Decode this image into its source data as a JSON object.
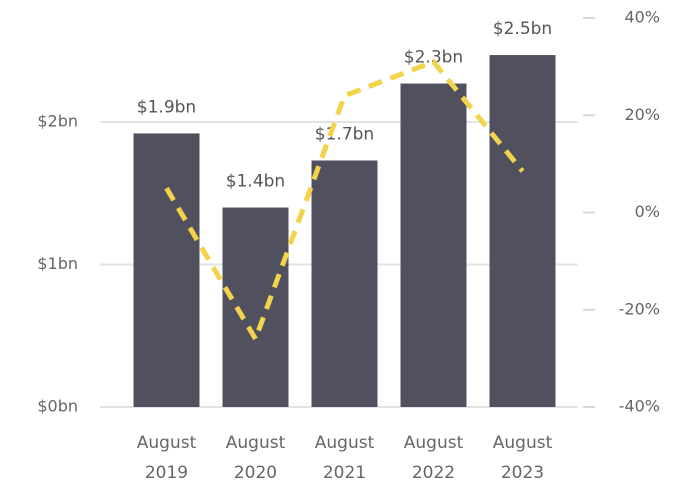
{
  "chart_data": {
    "type": "bar",
    "categories": [
      "August 2019",
      "August 2020",
      "August 2021",
      "August 2022",
      "August 2023"
    ],
    "series": [
      {
        "type": "bar",
        "color": "#50505f",
        "values": [
          1.92,
          1.4,
          1.73,
          2.27,
          2.47
        ],
        "value_labels": [
          "$1.9bn",
          "$1.4bn",
          "$1.7bn",
          "$2.3bn",
          "$2.5bn"
        ]
      },
      {
        "type": "line",
        "color": "#f2d34a",
        "axis": "y2",
        "values": [
          5,
          -26,
          24,
          31,
          8.5
        ]
      }
    ],
    "ylim": [
      0,
      2.73
    ],
    "yticks": [
      {
        "value": 0,
        "label": "$0bn"
      },
      {
        "value": 1,
        "label": "$1bn"
      },
      {
        "value": 2,
        "label": "$2bn"
      }
    ],
    "y2lim": [
      -40,
      40
    ],
    "y2ticks": [
      {
        "value": -40,
        "label": "-40%"
      },
      {
        "value": -20,
        "label": "-20%"
      },
      {
        "value": 0,
        "label": "0%"
      },
      {
        "value": 20,
        "label": "20%"
      },
      {
        "value": 40,
        "label": "40%"
      }
    ],
    "grid": true
  }
}
